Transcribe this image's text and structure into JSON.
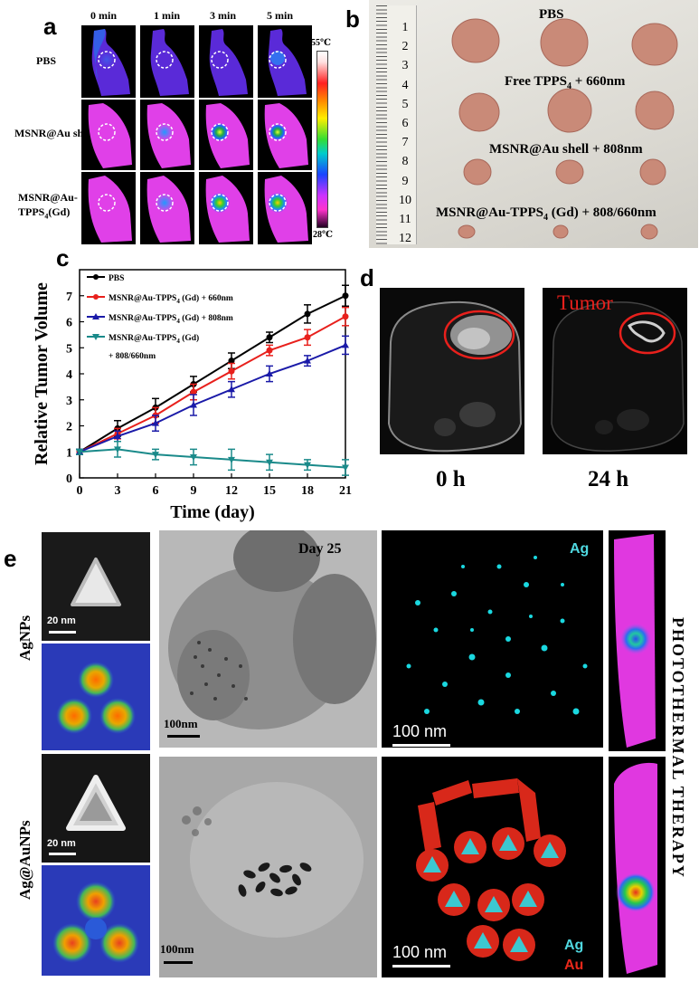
{
  "panel_a": {
    "letter": "a",
    "times": [
      "0 min",
      "1 min",
      "3 min",
      "5 min"
    ],
    "rows": [
      "PBS",
      "MSNR@Au shell",
      "MSNR@Au-",
      "TPPS4(Gd)"
    ],
    "scale_max": "55℃",
    "scale_min": "28℃",
    "row3_line2_main": "TPPS",
    "row3_line2_sub": "4",
    "row3_line2_tail": "(Gd)"
  },
  "panel_b": {
    "letter": "b",
    "groups": [
      "PBS",
      "Free TPPS",
      "4",
      " + 660nm",
      "MSNR@Au shell + 808nm",
      "MSNR@Au-TPPS",
      "4",
      " (Gd)  + 808/660nm"
    ],
    "ruler_numbers": [
      "1",
      "2",
      "3",
      "4",
      "5",
      "6",
      "7",
      "8",
      "9",
      "10",
      "11",
      "12"
    ]
  },
  "panel_c": {
    "letter": "c",
    "chart_data": {
      "type": "line",
      "xlabel": "Time (day)",
      "ylabel": "Relative Tumor Volume",
      "x": [
        0,
        3,
        6,
        9,
        12,
        15,
        18,
        21
      ],
      "xlim": [
        0,
        21
      ],
      "ylim": [
        0,
        8
      ],
      "xticks": [
        "0",
        "3",
        "6",
        "9",
        "12",
        "15",
        "18",
        "21"
      ],
      "yticks": [
        "0",
        "1",
        "2",
        "3",
        "4",
        "5",
        "6",
        "7"
      ],
      "series": [
        {
          "name": "PBS",
          "color": "#000000",
          "values": [
            1.0,
            1.9,
            2.7,
            3.6,
            4.5,
            5.4,
            6.3,
            7.0
          ],
          "errors": [
            0.1,
            0.3,
            0.35,
            0.3,
            0.3,
            0.2,
            0.35,
            0.4
          ]
        },
        {
          "name": "MSNR@Au-TPPS4 (Gd) + 660nm",
          "color": "#e8201c",
          "values": [
            1.0,
            1.7,
            2.4,
            3.3,
            4.1,
            4.9,
            5.4,
            6.2
          ],
          "errors": [
            0.1,
            0.2,
            0.3,
            0.3,
            0.3,
            0.2,
            0.3,
            0.35
          ]
        },
        {
          "name": "MSNR@Au-TPPS4 (Gd) + 808nm",
          "color": "#1a1aa8",
          "values": [
            1.0,
            1.6,
            2.1,
            2.8,
            3.4,
            4.0,
            4.5,
            5.1
          ],
          "errors": [
            0.1,
            0.2,
            0.3,
            0.4,
            0.3,
            0.3,
            0.2,
            0.35
          ]
        },
        {
          "name": "MSNR@Au-TPPS4 (Gd)  + 808/660nm",
          "color": "#1a8a8a",
          "values": [
            1.0,
            1.1,
            0.9,
            0.8,
            0.7,
            0.6,
            0.5,
            0.4
          ],
          "errors": [
            0.1,
            0.3,
            0.2,
            0.3,
            0.4,
            0.3,
            0.2,
            0.3
          ]
        }
      ],
      "legend": {
        "entries": [
          {
            "main": "PBS",
            "sub": "",
            "tail": ""
          },
          {
            "main": "MSNR@Au-TPPS",
            "sub": "4",
            "tail": " (Gd) + 660nm"
          },
          {
            "main": "MSNR@Au-TPPS",
            "sub": "4",
            "tail": " (Gd) + 808nm"
          },
          {
            "main": "MSNR@Au-TPPS",
            "sub": "4",
            "tail": " (Gd)"
          }
        ],
        "extra_line": "+ 808/660nm"
      }
    }
  },
  "panel_d": {
    "letter": "d",
    "tumor_label": "Tumor",
    "times": [
      "0 h",
      "24 h"
    ]
  },
  "panel_e": {
    "letter": "e",
    "row_labels": [
      "AgNPs",
      "Ag@AuNPs"
    ],
    "scale_20nm": "20 nm",
    "scale_100nm_tem": "100nm",
    "scale_100nm_map": "100 nm",
    "day_label": "Day 25",
    "ag_label": "Ag",
    "au_label": "Au",
    "side_label": "PHOTOTHERMAL THERAPY"
  }
}
